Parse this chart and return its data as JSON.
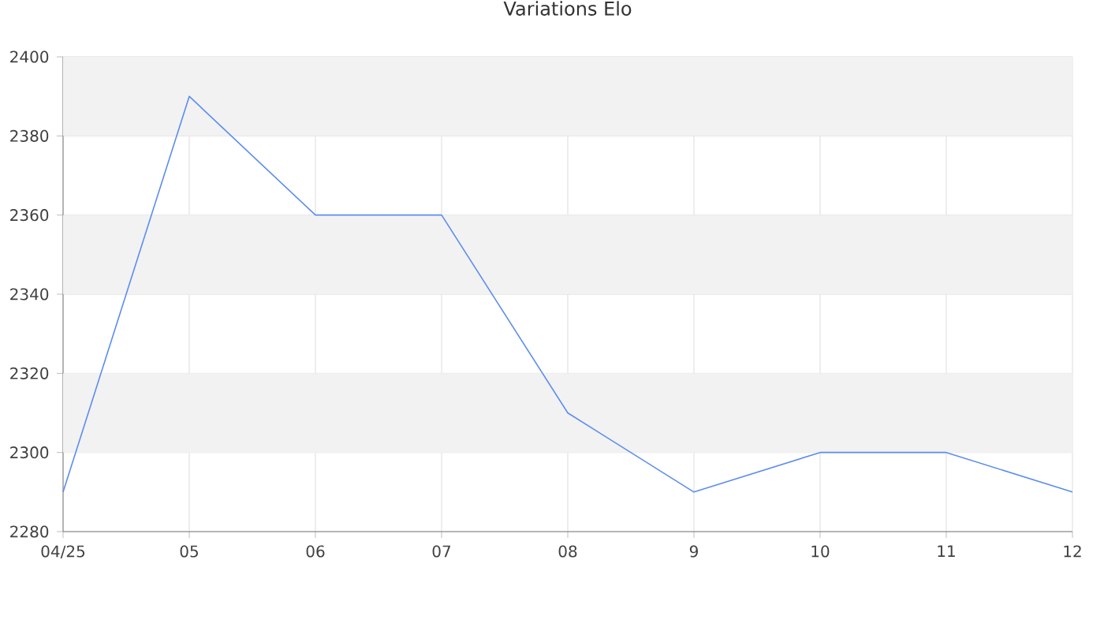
{
  "chart_data": {
    "type": "line",
    "title": "Variations Elo",
    "categories": [
      "04/25",
      "05",
      "06",
      "07",
      "08",
      "9",
      "10",
      "11",
      "12"
    ],
    "series": [
      {
        "color": "#5b8def",
        "values": [
          2290,
          2390,
          2360,
          2360,
          2310,
          2290,
          2300,
          2300,
          2290
        ]
      }
    ],
    "ylim": [
      2280,
      2400
    ],
    "yticks": [
      2280,
      2300,
      2320,
      2340,
      2360,
      2380,
      2400
    ],
    "grid": true,
    "marker": "none",
    "line_style": "solid",
    "bands": [
      {
        "axis": "y",
        "from": 2300,
        "to": 2320,
        "color": "#f2f2f2"
      },
      {
        "axis": "y",
        "from": 2340,
        "to": 2360,
        "color": "#f2f2f2"
      },
      {
        "axis": "y",
        "from": 2380,
        "to": 2400,
        "color": "#f2f2f2"
      }
    ]
  }
}
